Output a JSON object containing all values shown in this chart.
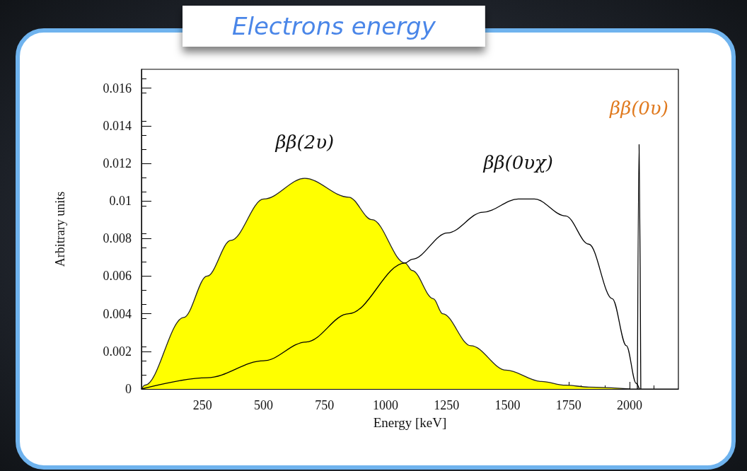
{
  "chart_data": {
    "type": "line",
    "title": "Electrons energy",
    "xlabel": "Energy [keV]",
    "ylabel": "Arbitrary units",
    "xlim": [
      0,
      2200
    ],
    "xticks": [
      250,
      500,
      750,
      1000,
      1250,
      1500,
      1750,
      2000
    ],
    "ylim": [
      0,
      0.017
    ],
    "yticks": [
      0,
      0.002,
      0.004,
      0.006,
      0.008,
      0.01,
      0.012,
      0.014,
      0.016
    ],
    "grid": false,
    "legend": false,
    "marker": "none",
    "line_style": "solid",
    "series": [
      {
        "name": "ββ(2υ)",
        "type": "area",
        "color": "#ffff00",
        "x": [
          0,
          14,
          173,
          269,
          366,
          501,
          669,
          849,
          945,
          1080,
          1109,
          1196,
          1234,
          1350,
          1494,
          1639,
          1738,
          1833,
          2000
        ],
        "values": [
          0,
          0.0002,
          0.0038,
          0.006,
          0.0079,
          0.0101,
          0.0112,
          0.0102,
          0.009,
          0.0067,
          0.0063,
          0.0048,
          0.004,
          0.0023,
          0.001,
          0.0004,
          0.0002,
          0.0001,
          0
        ]
      },
      {
        "name": "ββ(0υχ)",
        "color": "#000000",
        "x": [
          0,
          269,
          501,
          675,
          849,
          1080,
          1109,
          1254,
          1399,
          1544,
          1610,
          1738,
          1833,
          1929,
          1987,
          2027,
          2040
        ],
        "values": [
          0,
          0.0006,
          0.0015,
          0.0025,
          0.004,
          0.0067,
          0.0069,
          0.0083,
          0.0094,
          0.0101,
          0.0101,
          0.0092,
          0.0077,
          0.0048,
          0.0023,
          0.0003,
          0
        ]
      },
      {
        "name": "ββ(0υ)",
        "color": "#000000",
        "x": [
          2032,
          2039,
          2046
        ],
        "values": [
          0,
          0.013,
          0
        ]
      }
    ]
  }
}
